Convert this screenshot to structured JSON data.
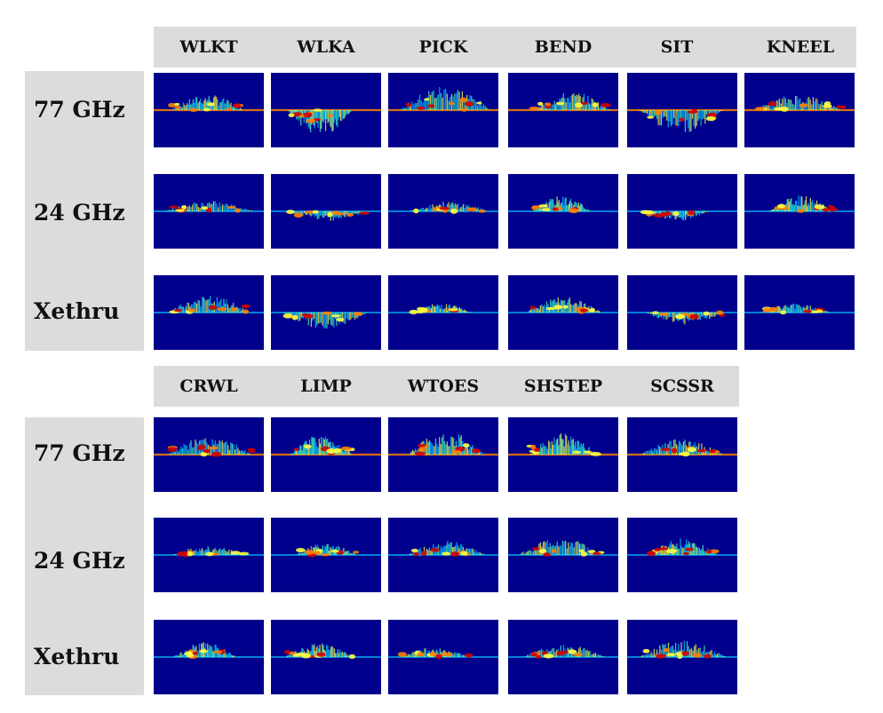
{
  "groups": [
    {
      "columns": [
        "WLKT",
        "WLKA",
        "PICK",
        "BEND",
        "SIT",
        "KNEEL"
      ],
      "rows": [
        "77 GHz",
        "24 GHz",
        "Xethru"
      ]
    },
    {
      "columns": [
        "CRWL",
        "LIMP",
        "WTOES",
        "SHSTEP",
        "SCSSR"
      ],
      "rows": [
        "77 GHz",
        "24 GHz",
        "Xethru"
      ]
    }
  ],
  "colors": {
    "background": "#00008c",
    "label_panel": "#dcdcdc",
    "signal": [
      "#00c8ff",
      "#40ffc0",
      "#ffff40",
      "#ff8000",
      "#d00000"
    ]
  }
}
